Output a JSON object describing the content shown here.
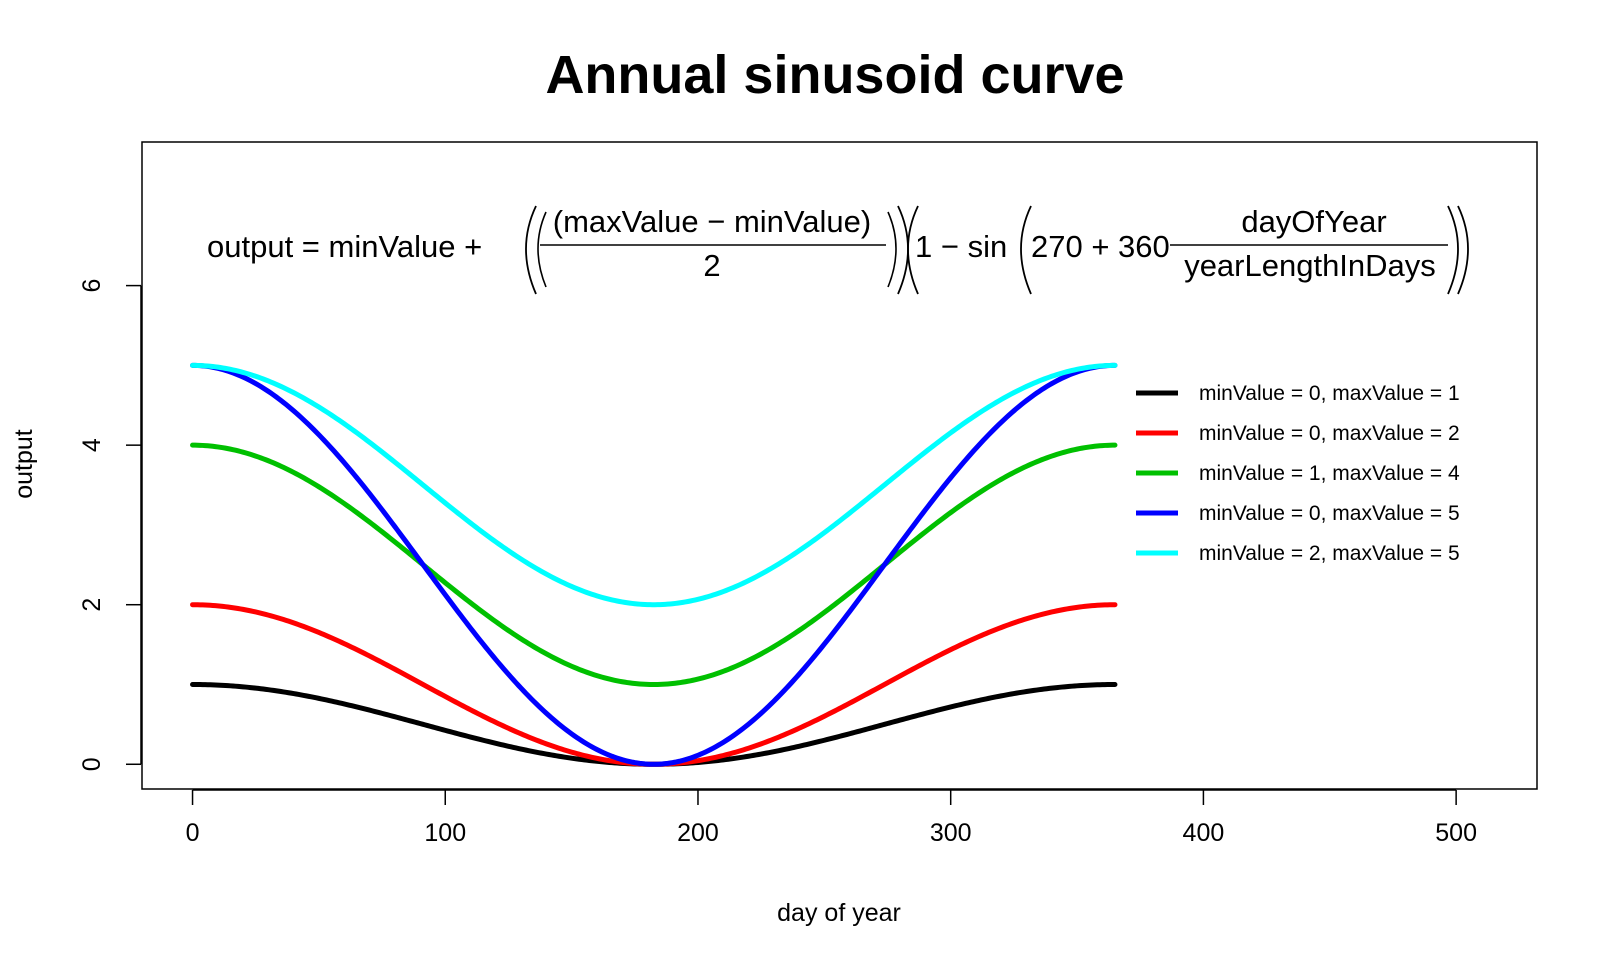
{
  "chart_data": {
    "type": "line",
    "title": "Annual sinusoid curve",
    "xlabel": "day of year",
    "ylabel": "output",
    "xlim": [
      -20,
      532
    ],
    "ylim": [
      -0.31,
      7.8
    ],
    "xticks": [
      0,
      100,
      200,
      300,
      400,
      500
    ],
    "yticks": [
      0,
      2,
      4,
      6
    ],
    "grid": false,
    "legend_position": "right",
    "year_length_days": 365,
    "formula": {
      "lhs": "output = minValue +",
      "frac1_num": "(maxValue − minValue)",
      "frac1_den": "2",
      "one_minus_sin": "1 − sin",
      "inner": "270 + 360",
      "frac2_num": "dayOfYear",
      "frac2_den": "yearLengthInDays"
    },
    "series": [
      {
        "name": "minValue = 0, maxValue = 1",
        "min": 0,
        "max": 1,
        "color": "#000000"
      },
      {
        "name": "minValue = 0, maxValue = 2",
        "min": 0,
        "max": 2,
        "color": "#ff0000"
      },
      {
        "name": "minValue = 1, maxValue = 4",
        "min": 1,
        "max": 4,
        "color": "#00c000"
      },
      {
        "name": "minValue = 0, maxValue = 5",
        "min": 0,
        "max": 5,
        "color": "#0000ff"
      },
      {
        "name": "minValue = 2, maxValue = 5",
        "min": 2,
        "max": 5,
        "color": "#00ffff"
      }
    ]
  }
}
